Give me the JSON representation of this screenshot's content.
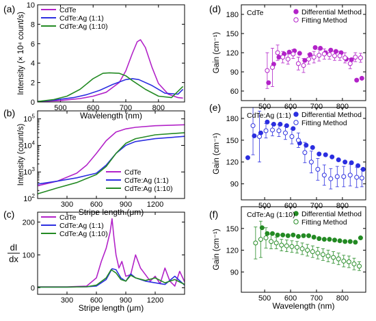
{
  "chart_data": [
    {
      "panel": "(a)",
      "type": "line",
      "xlabel": "Wavelength (nm)",
      "ylabel": "Intensity (× 10⁴ count/s)",
      "xlim": [
        430,
        880
      ],
      "ylim": [
        0,
        10
      ],
      "xticks": [
        500,
        600,
        700,
        800
      ],
      "yticks": [
        0,
        2,
        4,
        6,
        8,
        10
      ],
      "legend_position": "top-left",
      "series": [
        {
          "name": "CdTe",
          "color": "#b222c8",
          "x": [
            430,
            500,
            560,
            600,
            640,
            680,
            700,
            720,
            735,
            745,
            760,
            780,
            800,
            830,
            860,
            875
          ],
          "y": [
            0.05,
            0.15,
            0.35,
            0.6,
            1.0,
            2.0,
            3.2,
            5.0,
            6.2,
            6.4,
            5.6,
            3.6,
            1.9,
            0.8,
            0.45,
            0.4
          ]
        },
        {
          "name": "CdTe:Ag (1:1)",
          "color": "#2b2ee0",
          "x": [
            430,
            480,
            540,
            580,
            620,
            660,
            700,
            720,
            740,
            780,
            820,
            860,
            875
          ],
          "y": [
            0.05,
            0.2,
            0.45,
            0.75,
            1.2,
            1.8,
            2.3,
            2.4,
            2.3,
            1.7,
            0.9,
            0.8,
            1.3
          ]
        },
        {
          "name": "CdTe:Ag (1:10)",
          "color": "#238a23",
          "x": [
            430,
            480,
            520,
            560,
            600,
            630,
            650,
            680,
            700,
            720,
            760,
            800,
            840,
            875
          ],
          "y": [
            0.05,
            0.25,
            0.6,
            1.3,
            2.4,
            2.95,
            3.0,
            2.95,
            2.7,
            2.2,
            1.3,
            0.6,
            0.45,
            1.6
          ]
        }
      ]
    },
    {
      "panel": "(b)",
      "type": "line",
      "xlabel": "Stripe length (μm)",
      "ylabel": "Intensity (count/s)",
      "yscale": "log",
      "xlim": [
        0,
        1500
      ],
      "ylim": [
        100,
        200000
      ],
      "xticks": [
        300,
        600,
        900,
        1200
      ],
      "legend_position": "bottom-right",
      "series": [
        {
          "name": "CdTe",
          "color": "#b222c8",
          "x": [
            0,
            200,
            400,
            500,
            600,
            700,
            800,
            900,
            1000,
            1200,
            1500
          ],
          "y": [
            300,
            450,
            900,
            1800,
            5000,
            15000,
            32000,
            42000,
            48000,
            55000,
            60000
          ]
        },
        {
          "name": "CdTe:Ag (1:1)",
          "color": "#2b2ee0",
          "x": [
            0,
            200,
            400,
            600,
            700,
            800,
            900,
            1000,
            1200,
            1500
          ],
          "y": [
            350,
            450,
            600,
            900,
            1800,
            5000,
            10000,
            14000,
            18000,
            22000
          ]
        },
        {
          "name": "CdTe:Ag (1:10)",
          "color": "#238a23",
          "x": [
            0,
            200,
            400,
            600,
            700,
            800,
            900,
            1000,
            1200,
            1500
          ],
          "y": [
            150,
            250,
            400,
            800,
            1600,
            5000,
            12000,
            18000,
            25000,
            30000
          ]
        }
      ]
    },
    {
      "panel": "(c)",
      "type": "line",
      "xlabel": "Stripe length (μm)",
      "ylabel_top": "dI",
      "ylabel_bottom": "dx",
      "xlim": [
        0,
        1500
      ],
      "ylim": [
        -20,
        230
      ],
      "xticks": [
        300,
        600,
        900,
        1200
      ],
      "yticks": [
        0,
        100,
        200
      ],
      "legend_position": "top-left",
      "series": [
        {
          "name": "CdTe",
          "color": "#b222c8",
          "x": [
            0,
            300,
            500,
            600,
            650,
            700,
            740,
            760,
            780,
            800,
            830,
            860,
            900,
            950,
            1000,
            1050,
            1100,
            1150,
            1200,
            1250,
            1300,
            1350,
            1400,
            1450,
            1500
          ],
          "y": [
            3,
            3,
            5,
            30,
            80,
            120,
            170,
            210,
            150,
            100,
            60,
            80,
            35,
            40,
            100,
            60,
            40,
            20,
            35,
            12,
            60,
            20,
            5,
            50,
            18
          ]
        },
        {
          "name": "CdTe:Ag (1:1)",
          "color": "#2b2ee0",
          "x": [
            0,
            300,
            500,
            600,
            700,
            760,
            800,
            850,
            900,
            950,
            1000,
            1100,
            1200,
            1300,
            1400,
            1500
          ],
          "y": [
            2,
            2,
            3,
            5,
            25,
            58,
            55,
            30,
            20,
            42,
            30,
            20,
            15,
            10,
            35,
            8
          ]
        },
        {
          "name": "CdTe:Ag (1:10)",
          "color": "#238a23",
          "x": [
            0,
            300,
            500,
            600,
            700,
            750,
            800,
            850,
            900,
            950,
            1000,
            1100,
            1200,
            1300,
            1400,
            1500
          ],
          "y": [
            2,
            2,
            3,
            8,
            30,
            55,
            45,
            25,
            20,
            38,
            30,
            22,
            30,
            15,
            25,
            10
          ]
        }
      ]
    },
    {
      "panel": "(d)",
      "type": "scatter",
      "annotation": "CdTe",
      "ylabel": "Gain (cm⁻¹)",
      "xlim": [
        410,
        890
      ],
      "ylim": [
        45,
        195
      ],
      "xticks": [
        500,
        600,
        700,
        800
      ],
      "yticks": [
        60,
        90,
        120,
        150,
        180
      ],
      "legend_position": "top-right",
      "color": "#b222c8",
      "series": [
        {
          "name": "Differential Method",
          "marker": "filled",
          "x": [
            515,
            535,
            555,
            575,
            595,
            615,
            635,
            655,
            675,
            695,
            715,
            735,
            755,
            775,
            795,
            815,
            835,
            855,
            875
          ],
          "y": [
            73,
            102,
            113,
            118,
            121,
            123,
            119,
            108,
            117,
            128,
            127,
            120,
            124,
            122,
            120,
            110,
            109,
            77,
            80
          ]
        },
        {
          "name": "Fitting Method",
          "marker": "open",
          "x": [
            510,
            530,
            550,
            570,
            590,
            610,
            630,
            650,
            670,
            690,
            710,
            730,
            750,
            770,
            790,
            810,
            830,
            850,
            870
          ],
          "y": [
            92,
            97,
            120,
            113,
            110,
            118,
            103,
            100,
            110,
            113,
            116,
            118,
            117,
            115,
            115,
            112,
            103,
            113,
            112
          ]
        }
      ],
      "errors_open": [
        28,
        30,
        12,
        9,
        8,
        7,
        10,
        11,
        8,
        9,
        9,
        8,
        7,
        7,
        7,
        8,
        8,
        7,
        7
      ]
    },
    {
      "panel": "(e)",
      "type": "scatter",
      "annotation": "CdTe:Ag (1:1)",
      "ylabel": "Gain (cm⁻¹)",
      "xlim": [
        410,
        890
      ],
      "ylim": [
        68,
        195
      ],
      "xticks": [
        500,
        600,
        700,
        800
      ],
      "yticks": [
        90,
        120,
        150,
        180
      ],
      "legend_position": "top-right",
      "color": "#2b2ee0",
      "series": [
        {
          "name": "Differential Method",
          "marker": "filled",
          "x": [
            435,
            460,
            485,
            510,
            535,
            560,
            585,
            610,
            635,
            660,
            685,
            710,
            735,
            760,
            785,
            810,
            835,
            860,
            880
          ],
          "y": [
            126,
            156,
            160,
            175,
            172,
            172,
            170,
            166,
            146,
            143,
            140,
            131,
            130,
            127,
            123,
            120,
            119,
            115,
            110
          ]
        },
        {
          "name": "Fitting Method",
          "marker": "open",
          "x": [
            455,
            480,
            505,
            530,
            555,
            580,
            605,
            630,
            655,
            680,
            705,
            730,
            755,
            780,
            805,
            830,
            855,
            875
          ],
          "y": [
            170,
            155,
            163,
            164,
            163,
            160,
            155,
            150,
            133,
            120,
            110,
            102,
            97,
            100,
            100,
            102,
            99,
            98
          ]
        }
      ],
      "errors_open": [
        40,
        35,
        10,
        8,
        8,
        9,
        10,
        10,
        14,
        15,
        15,
        14,
        14,
        14,
        14,
        15,
        14,
        12
      ]
    },
    {
      "panel": "(f)",
      "type": "scatter",
      "annotation": "CdTe:Ag (1:10)",
      "xlabel": "Wavelength (nm)",
      "ylabel": "Gain (cm⁻¹)",
      "xlim": [
        410,
        890
      ],
      "ylim": [
        62,
        180
      ],
      "xticks": [
        500,
        600,
        700,
        800
      ],
      "yticks": [
        90,
        120,
        150
      ],
      "legend_position": "top-right",
      "color": "#238a23",
      "series": [
        {
          "name": "Differential Method",
          "marker": "filled",
          "x": [
            490,
            510,
            530,
            550,
            570,
            590,
            610,
            630,
            650,
            670,
            690,
            710,
            730,
            750,
            770,
            790,
            810,
            830,
            850,
            870
          ],
          "y": [
            151,
            143,
            143,
            141,
            141,
            140,
            141,
            139,
            140,
            140,
            138,
            136,
            135,
            135,
            134,
            133,
            132,
            132,
            131,
            137
          ]
        },
        {
          "name": "Fitting Method",
          "marker": "open",
          "x": [
            465,
            485,
            505,
            525,
            545,
            565,
            585,
            605,
            625,
            645,
            665,
            685,
            705,
            725,
            745,
            765,
            785,
            805,
            825,
            845,
            865
          ],
          "y": [
            130,
            135,
            137,
            132,
            130,
            127,
            126,
            125,
            124,
            122,
            120,
            118,
            116,
            114,
            112,
            110,
            108,
            105,
            104,
            101,
            98
          ]
        }
      ],
      "errors_open": [
        22,
        25,
        14,
        10,
        8,
        8,
        8,
        8,
        8,
        8,
        8,
        8,
        8,
        8,
        8,
        8,
        8,
        8,
        8,
        8,
        6
      ]
    }
  ]
}
